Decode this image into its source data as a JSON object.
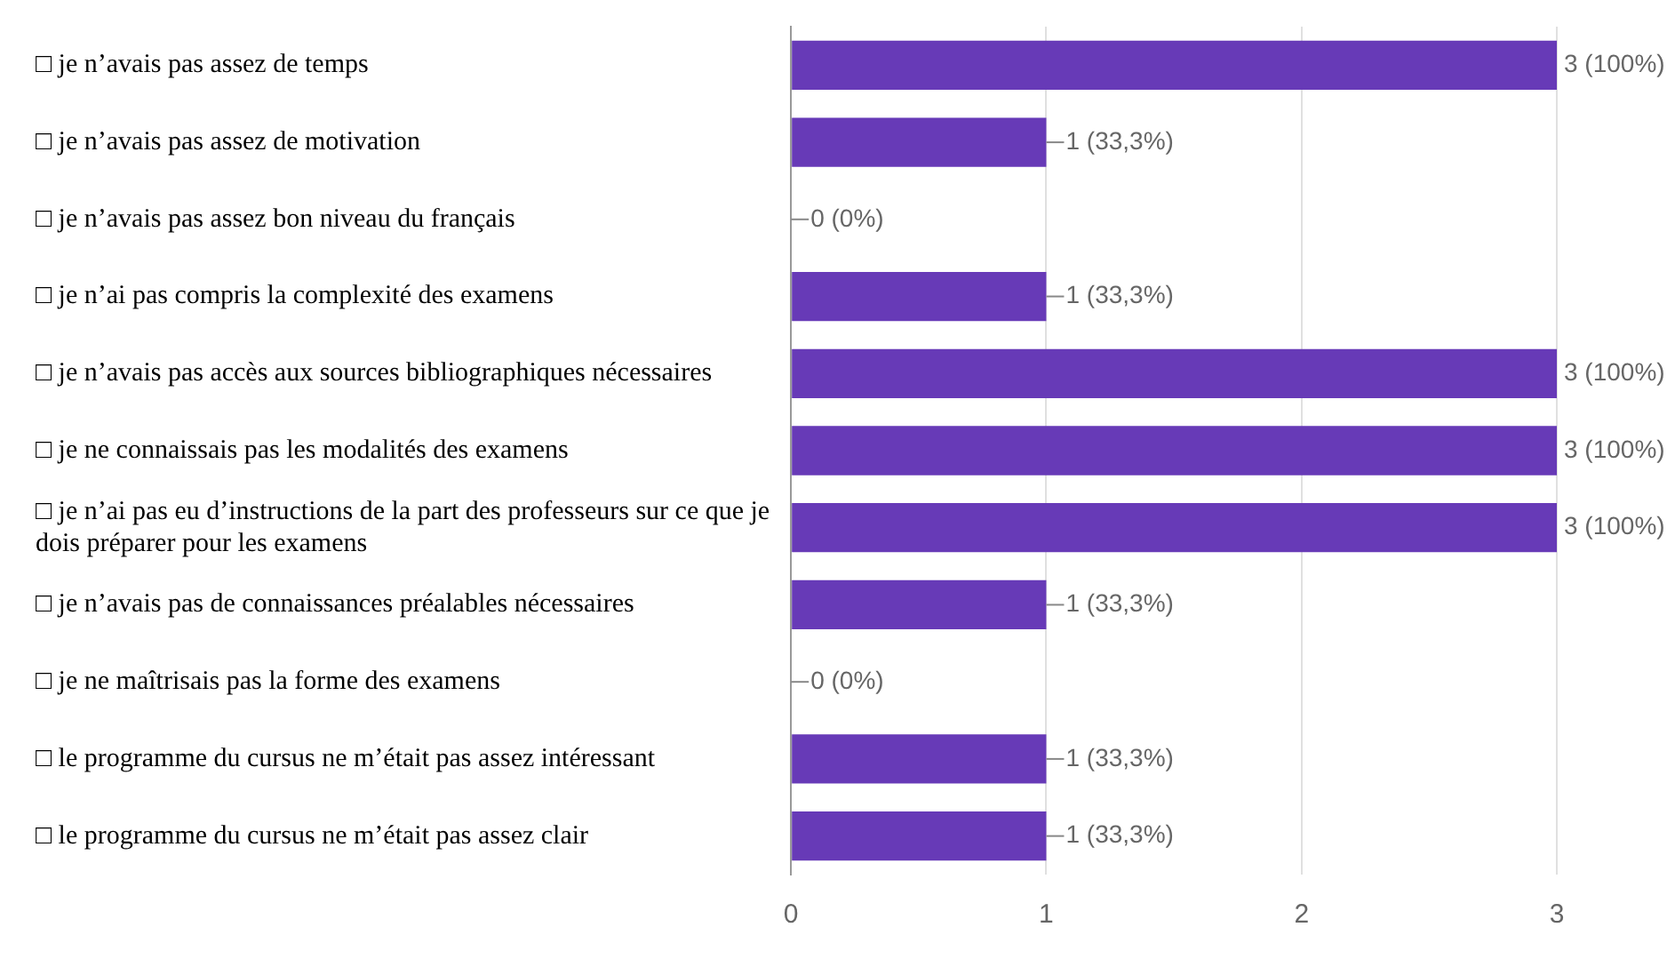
{
  "chart_data": {
    "type": "bar",
    "orientation": "horizontal",
    "categories": [
      "□ je n’avais pas assez de temps",
      "□ je n’avais pas assez de motivation",
      "□ je n’avais pas assez bon niveau du français",
      "□ je n’ai pas compris la complexité des examens",
      "□ je n’avais pas accès aux sources bibliographiques nécessaires",
      "□ je ne connaissais pas les modalités des examens",
      "□ je n’ai pas eu d’instructions de la part des professeurs sur ce que je dois préparer pour les examens",
      "□ je n’avais pas de connaissances préalables nécessaires",
      "□ je ne maîtrisais pas la forme des examens",
      "□ le programme du cursus ne m’était pas assez intéressant",
      "□ le programme du cursus ne m’était pas assez clair"
    ],
    "values": [
      3,
      1,
      0,
      1,
      3,
      3,
      3,
      1,
      0,
      1,
      1
    ],
    "value_labels": [
      "3 (100%)",
      "1 (33,3%)",
      "0 (0%)",
      "1 (33,3%)",
      "3 (100%)",
      "3 (100%)",
      "3 (100%)",
      "1 (33,3%)",
      "0 (0%)",
      "1 (33,3%)",
      "1 (33,3%)"
    ],
    "color": "#673ab7",
    "xlim": [
      0,
      3
    ],
    "xticks": [
      0,
      1,
      2,
      3
    ],
    "grid": "x",
    "legend": false
  }
}
